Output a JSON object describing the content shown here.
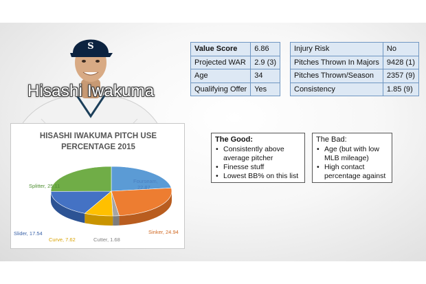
{
  "player": {
    "name": "Hisashi Iwakuma",
    "cap_logo": "S"
  },
  "stats_left": [
    {
      "label": "Value Score",
      "value": "6.86",
      "bold_label": true
    },
    {
      "label": "Projected WAR",
      "value": "2.9 (3)"
    },
    {
      "label": "Age",
      "value": "34"
    },
    {
      "label": "Qualifying Offer",
      "value": "Yes"
    }
  ],
  "stats_right": [
    {
      "label": "Injury Risk",
      "value": "No"
    },
    {
      "label": "Pitches Thrown In Majors",
      "value": "9428 (1)"
    },
    {
      "label": "Pitches Thrown/Season",
      "value": "2357 (9)"
    },
    {
      "label": "Consistency",
      "value": "1.85 (9)"
    }
  ],
  "chart_data": {
    "type": "pie",
    "title": "HISASHI IWAKUMA PITCH USE PERCENTAGE 2015",
    "title_lines": [
      "HISASHI IWAKUMA PITCH USE",
      "PERCENTAGE 2015"
    ],
    "slices": [
      {
        "label": "Fourseam",
        "value": 22.87,
        "color": "#5b9bd5",
        "dark": "#3f78ad",
        "label_text": "Fourseam,",
        "value_text": "22.87",
        "label_color": "#4a7fc0"
      },
      {
        "label": "Sinker",
        "value": 24.94,
        "color": "#ed7d31",
        "dark": "#b95d1f",
        "label_text": "Sinker, 24.94",
        "label_color": "#d06a24"
      },
      {
        "label": "Cutter",
        "value": 1.68,
        "color": "#a5a5a5",
        "dark": "#7d7d7d",
        "label_text": "Cutter, 1.68",
        "label_color": "#808080"
      },
      {
        "label": "Curve",
        "value": 7.62,
        "color": "#ffc000",
        "dark": "#c99400",
        "label_text": "Curve, 7.62",
        "label_color": "#d9a200"
      },
      {
        "label": "Slider",
        "value": 17.54,
        "color": "#4472c4",
        "dark": "#2d5394",
        "label_text": "Slider, 17.54",
        "label_color": "#3a62a8"
      },
      {
        "label": "Splitter",
        "value": 25.11,
        "color": "#70ad47",
        "dark": "#4f8030",
        "label_text": "Splitter, 25.11",
        "label_color": "#4f8f32"
      }
    ]
  },
  "good": {
    "title": "The Good:",
    "items": [
      "Consistently above average pitcher",
      "Finesse stuff",
      "Lowest BB% on this list"
    ]
  },
  "bad": {
    "title": "The Bad:",
    "items": [
      "Age (but with low MLB mileage)",
      "High contact percentage against"
    ]
  }
}
